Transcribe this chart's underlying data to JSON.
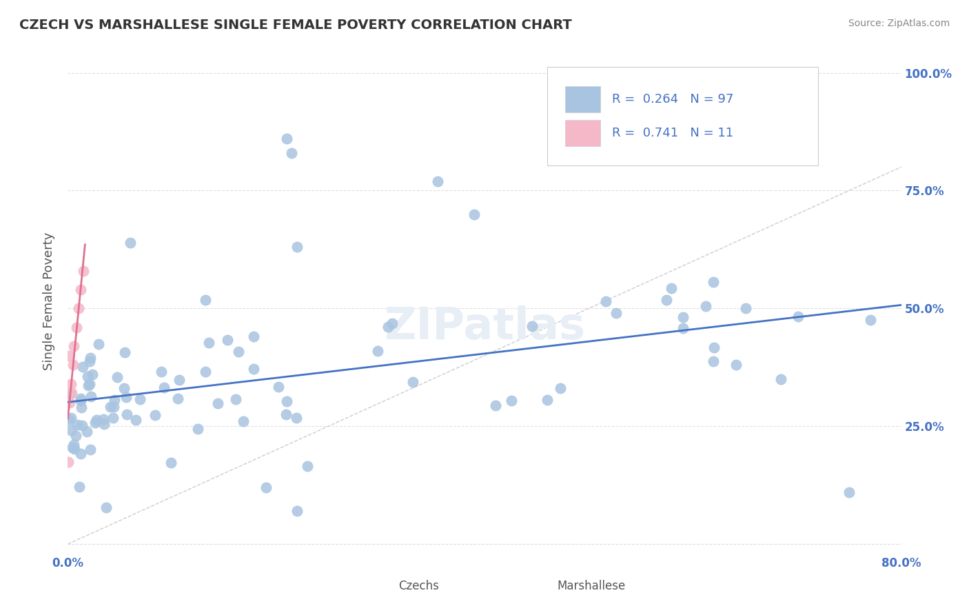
{
  "title": "CZECH VS MARSHALLESE SINGLE FEMALE POVERTY CORRELATION CHART",
  "source": "Source: ZipAtlas.com",
  "ylabel": "Single Female Poverty",
  "xlim": [
    0.0,
    0.8
  ],
  "ylim": [
    -0.02,
    1.05
  ],
  "czechs_color": "#a8c4e0",
  "marshallese_color": "#f4b8c8",
  "trend_czech_color": "#4472c4",
  "trend_marsh_color": "#e07090",
  "ref_line_color": "#cccccc",
  "background_color": "#ffffff",
  "grid_color": "#e0e0e0",
  "legend_czech_label": "Czechs",
  "legend_marsh_label": "Marshallese",
  "R_czech": 0.264,
  "N_czech": 97,
  "R_marsh": 0.741,
  "N_marsh": 11,
  "tick_label_color": "#4472c4",
  "watermark_text": "ZIPatlas",
  "watermark_color": "#e8eef5"
}
